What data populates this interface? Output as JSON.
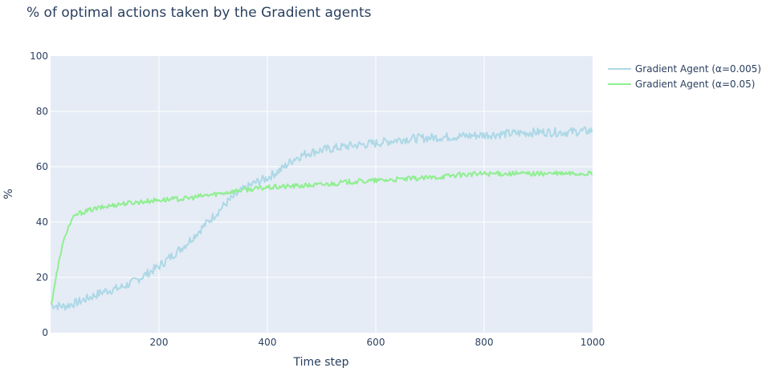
{
  "chart_data": {
    "type": "line",
    "title": "% of optimal actions taken by the Gradient agents",
    "xlabel": "Time step",
    "ylabel": "%",
    "xlim": [
      0,
      1000
    ],
    "ylim": [
      0,
      100
    ],
    "xticks": [
      200,
      400,
      600,
      800,
      1000
    ],
    "yticks": [
      0,
      20,
      40,
      60,
      80,
      100
    ],
    "grid": true,
    "legend_position": "top-right",
    "series": [
      {
        "name": "Gradient Agent (α=0.005)",
        "color": "#add8e6",
        "points": [
          [
            1,
            10
          ],
          [
            25,
            9.5
          ],
          [
            50,
            11
          ],
          [
            75,
            13
          ],
          [
            100,
            15
          ],
          [
            125,
            16
          ],
          [
            150,
            18
          ],
          [
            175,
            21
          ],
          [
            200,
            24
          ],
          [
            225,
            28
          ],
          [
            250,
            32
          ],
          [
            275,
            37
          ],
          [
            300,
            42
          ],
          [
            325,
            47
          ],
          [
            350,
            51
          ],
          [
            375,
            54
          ],
          [
            400,
            56
          ],
          [
            425,
            59
          ],
          [
            450,
            63
          ],
          [
            475,
            65
          ],
          [
            500,
            66
          ],
          [
            550,
            67.5
          ],
          [
            600,
            68.5
          ],
          [
            650,
            70
          ],
          [
            700,
            70.5
          ],
          [
            750,
            71
          ],
          [
            800,
            71.5
          ],
          [
            850,
            72
          ],
          [
            900,
            72.5
          ],
          [
            950,
            72.5
          ],
          [
            1000,
            73
          ]
        ]
      },
      {
        "name": "Gradient Agent (α=0.05)",
        "color": "#90ee90",
        "points": [
          [
            1,
            10
          ],
          [
            10,
            20
          ],
          [
            20,
            30
          ],
          [
            30,
            37
          ],
          [
            40,
            41
          ],
          [
            50,
            43
          ],
          [
            75,
            44.5
          ],
          [
            100,
            45.5
          ],
          [
            125,
            46.5
          ],
          [
            150,
            47
          ],
          [
            200,
            48
          ],
          [
            250,
            48.5
          ],
          [
            300,
            50
          ],
          [
            350,
            51.5
          ],
          [
            400,
            52.5
          ],
          [
            450,
            53
          ],
          [
            500,
            53.5
          ],
          [
            550,
            54.5
          ],
          [
            600,
            55
          ],
          [
            650,
            55.5
          ],
          [
            700,
            56
          ],
          [
            750,
            57
          ],
          [
            800,
            57.5
          ],
          [
            850,
            57.5
          ],
          [
            900,
            57.5
          ],
          [
            950,
            57.5
          ],
          [
            1000,
            57.5
          ]
        ]
      }
    ]
  }
}
